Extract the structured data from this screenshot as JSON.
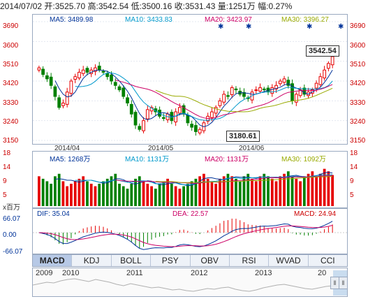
{
  "header": {
    "date": "2014/07/02",
    "open_label": "开:",
    "open": "3525.70",
    "high_label": "高:",
    "high": "3542.54",
    "low_label": "低:",
    "low": "3500.16",
    "close_label": "收:",
    "close": "3531.43",
    "vol_label": "量:",
    "vol": "1251万",
    "chg_label": "幅:",
    "chg": "0.27%"
  },
  "price_panel": {
    "ma5": "MA5: 3489.98",
    "ma10": "MA10: 3433.83",
    "ma20": "MA20: 3423.97",
    "ma30": "MA30: 3396.27",
    "y_ticks": [
      "3690",
      "3600",
      "3510",
      "3420",
      "3330",
      "3240",
      "3150"
    ],
    "x_labels": [
      "2014/04",
      "2014/05",
      "2014/06"
    ],
    "high_callout": "3542.54",
    "low_callout": "3180.61"
  },
  "vol_panel": {
    "ma5": "MA5: 1268万",
    "ma10": "MA10: 1131万",
    "ma20": "MA20: 1131万",
    "ma30": "MA30: 1092万",
    "y_ticks": [
      "18",
      "14",
      "9",
      "5",
      "0"
    ],
    "unit": "x百万"
  },
  "macd_panel": {
    "dif": "DIF: 35.04",
    "dea": "DEA: 22.57",
    "macd": "MACD: 24.94",
    "y_ticks": [
      "66.07",
      "0.00",
      "-66.07"
    ]
  },
  "tabs": [
    "MACD",
    "KDJ",
    "BOLL",
    "PSY",
    "OBV",
    "RSI",
    "WVAD",
    "CCI"
  ],
  "active_tab": "MACD",
  "navigator": {
    "years": [
      "2009",
      "2010",
      "2011",
      "2012",
      "2013",
      "20"
    ]
  },
  "colors": {
    "up": "#e60000",
    "down": "#008000",
    "ma5": "#003399",
    "ma10": "#0099cc",
    "ma20": "#cc0066",
    "ma30": "#99aa00",
    "axis": "#cc0000"
  },
  "chart_data": {
    "type": "candlestick",
    "dates": [
      "2014/04",
      "2014/05",
      "2014/06",
      "2014/07/02"
    ],
    "ohlc_last": {
      "open": 3525.7,
      "high": 3542.54,
      "low": 3500.16,
      "close": 3531.43
    },
    "closes": [
      3480,
      3450,
      3430,
      3400,
      3350,
      3300,
      3320,
      3370,
      3420,
      3440,
      3460,
      3470,
      3460,
      3470,
      3480,
      3470,
      3460,
      3440,
      3420,
      3400,
      3380,
      3350,
      3320,
      3270,
      3220,
      3200,
      3240,
      3290,
      3300,
      3280,
      3260,
      3250,
      3270,
      3240,
      3280,
      3300,
      3270,
      3230,
      3210,
      3190,
      3200,
      3230,
      3260,
      3280,
      3300,
      3330,
      3360,
      3350,
      3390,
      3380,
      3360,
      3350,
      3340,
      3370,
      3380,
      3390,
      3380,
      3370,
      3390,
      3400,
      3420,
      3430,
      3400,
      3330,
      3360,
      3380,
      3360,
      3370,
      3380,
      3410,
      3440,
      3470,
      3500,
      3531
    ],
    "volumes": [
      12,
      11,
      10,
      9,
      12,
      13,
      10,
      8,
      9,
      10,
      11,
      12,
      10,
      9,
      8,
      9,
      10,
      11,
      12,
      13,
      9,
      8,
      7,
      9,
      11,
      12,
      10,
      9,
      8,
      7,
      9,
      10,
      11,
      9,
      8,
      7,
      8,
      9,
      10,
      11,
      12,
      13,
      11,
      10,
      9,
      11,
      12,
      13,
      12,
      11,
      10,
      12,
      13,
      11,
      10,
      12,
      13,
      12,
      11,
      10,
      12,
      13,
      14,
      12,
      11,
      10,
      12,
      13,
      14,
      12,
      13,
      15,
      14,
      12.5
    ],
    "vol_ylim": [
      0,
      18
    ],
    "price_ylim": [
      3150,
      3690
    ]
  }
}
